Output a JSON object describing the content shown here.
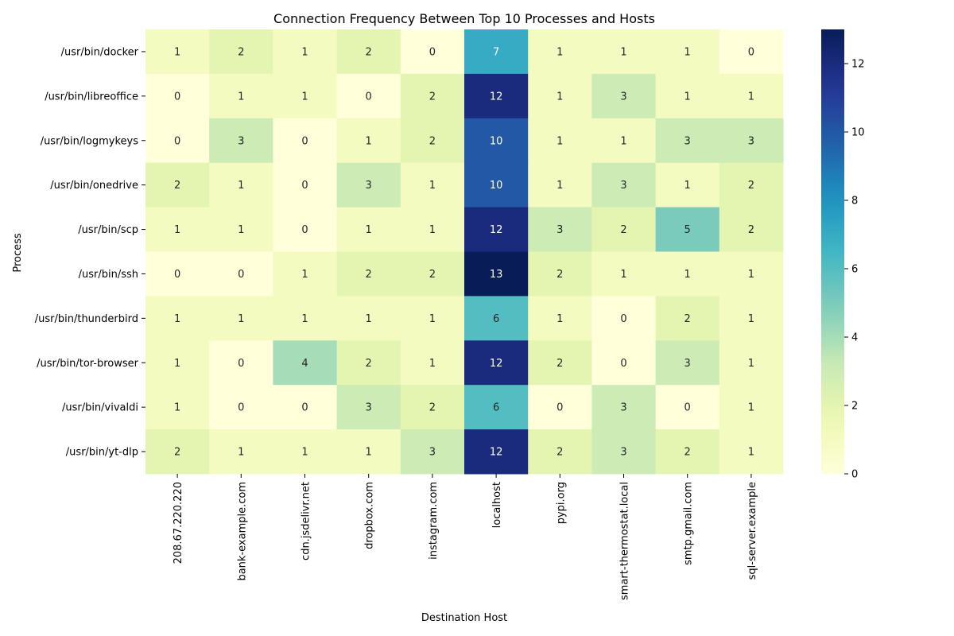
{
  "chart_data": {
    "type": "heatmap",
    "title": "Connection Frequency Between Top 10 Processes and Hosts",
    "xlabel": "Destination Host",
    "ylabel": "Process",
    "rows": [
      "/usr/bin/docker",
      "/usr/bin/libreoffice",
      "/usr/bin/logmykeys",
      "/usr/bin/onedrive",
      "/usr/bin/scp",
      "/usr/bin/ssh",
      "/usr/bin/thunderbird",
      "/usr/bin/tor-browser",
      "/usr/bin/vivaldi",
      "/usr/bin/yt-dlp"
    ],
    "columns": [
      "208.67.220.220",
      "bank-example.com",
      "cdn.jsdelivr.net",
      "dropbox.com",
      "instagram.com",
      "localhost",
      "pypi.org",
      "smart-thermostat.local",
      "smtp.gmail.com",
      "sql-server.example"
    ],
    "values": [
      [
        1,
        2,
        1,
        2,
        0,
        7,
        1,
        1,
        1,
        0
      ],
      [
        0,
        1,
        1,
        0,
        2,
        12,
        1,
        3,
        1,
        1
      ],
      [
        0,
        3,
        0,
        1,
        2,
        10,
        1,
        1,
        3,
        3
      ],
      [
        2,
        1,
        0,
        3,
        1,
        10,
        1,
        3,
        1,
        2
      ],
      [
        1,
        1,
        0,
        1,
        1,
        12,
        3,
        2,
        5,
        2
      ],
      [
        0,
        0,
        1,
        2,
        2,
        13,
        2,
        1,
        1,
        1
      ],
      [
        1,
        1,
        1,
        1,
        1,
        6,
        1,
        0,
        2,
        1
      ],
      [
        1,
        0,
        4,
        2,
        1,
        12,
        2,
        0,
        3,
        1
      ],
      [
        1,
        0,
        0,
        3,
        2,
        6,
        0,
        3,
        0,
        1
      ],
      [
        2,
        1,
        1,
        1,
        3,
        12,
        2,
        3,
        2,
        1
      ]
    ],
    "colorbar": {
      "range": [
        0,
        13
      ],
      "ticks": [
        0,
        2,
        4,
        6,
        8,
        10,
        12
      ],
      "colormap": "YlGnBu"
    },
    "annotated": true,
    "grid": false
  }
}
